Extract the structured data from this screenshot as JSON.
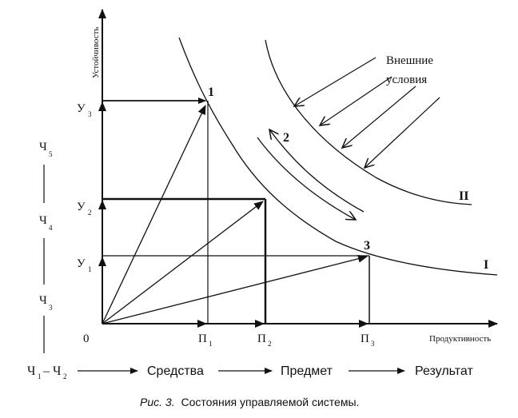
{
  "caption": {
    "prefix": "Рис. 3.",
    "text": "Состояния управляемой системы."
  },
  "axes": {
    "y_label": "Устойчивость",
    "x_label": "Продуктивность",
    "origin": "0"
  },
  "y_levels": [
    {
      "main": "У",
      "sub": "3"
    },
    {
      "main": "У",
      "sub": "2"
    },
    {
      "main": "У",
      "sub": "1"
    }
  ],
  "x_levels": [
    {
      "main": "П",
      "sub": "1"
    },
    {
      "main": "П",
      "sub": "2"
    },
    {
      "main": "П",
      "sub": "3"
    }
  ],
  "points": [
    "1",
    "2",
    "3"
  ],
  "curves": {
    "inner": "I",
    "outer": "II"
  },
  "external": {
    "line1": "Внешние",
    "line2": "условия"
  },
  "left_scale": [
    {
      "main": "Ч",
      "sub": "5"
    },
    {
      "main": "Ч",
      "sub": "4"
    },
    {
      "main": "Ч",
      "sub": "3"
    }
  ],
  "chain": {
    "start_a": "Ч",
    "start_a_sub": "1",
    "dash": "–",
    "start_b": "Ч",
    "start_b_sub": "2",
    "step1": "Средства",
    "step2": "Предмет",
    "step3": "Результат"
  }
}
